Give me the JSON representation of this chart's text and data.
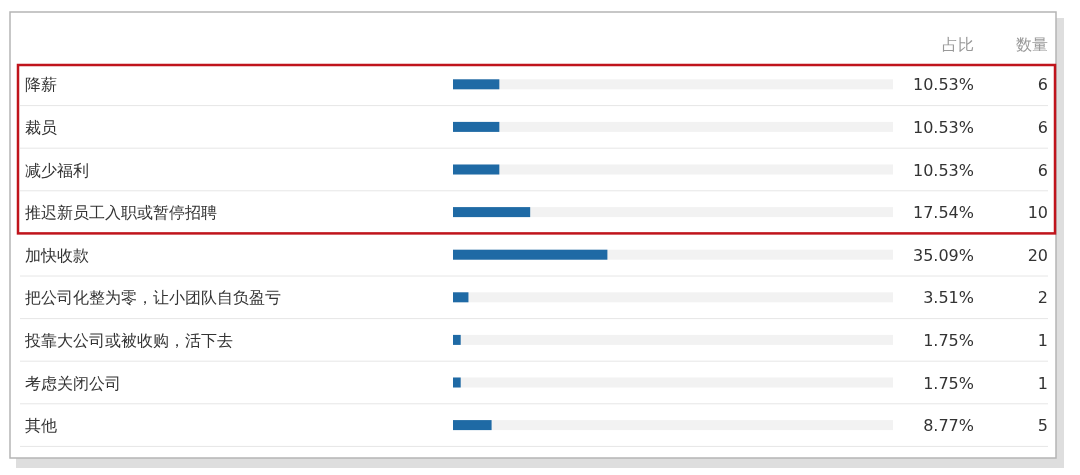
{
  "chart_data": {
    "type": "bar",
    "orientation": "horizontal",
    "categories": [
      "降薪",
      "裁员",
      "减少福利",
      "推迟新员工入职或暂停招聘",
      "加快收款",
      "把公司化整为零，让小团队自负盈亏",
      "投靠大公司或被收购，活下去",
      "考虑关闭公司",
      "其他"
    ],
    "values": [
      10.53,
      10.53,
      10.53,
      17.54,
      35.09,
      3.51,
      1.75,
      1.75,
      8.77
    ],
    "value_labels": [
      "10.53%",
      "10.53%",
      "10.53%",
      "17.54%",
      "35.09%",
      "3.51%",
      "1.75%",
      "1.75%",
      "8.77%"
    ],
    "color": "#1f6aa5",
    "xlim": [
      0,
      100
    ],
    "tick_labels": "y",
    "annotations": [
      "占比",
      "数量",
      "6",
      "6",
      "6",
      "10",
      "20",
      "2",
      "1",
      "1",
      "5"
    ]
  }
}
